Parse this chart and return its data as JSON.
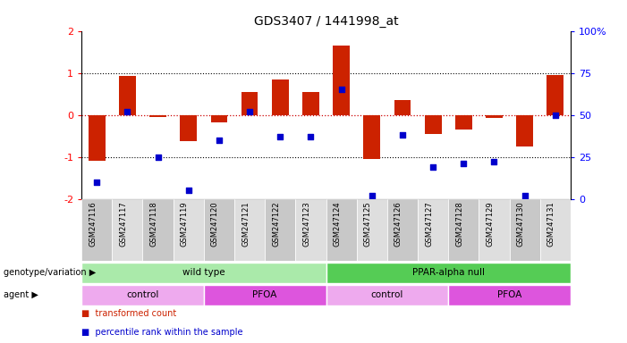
{
  "title": "GDS3407 / 1441998_at",
  "samples": [
    "GSM247116",
    "GSM247117",
    "GSM247118",
    "GSM247119",
    "GSM247120",
    "GSM247121",
    "GSM247122",
    "GSM247123",
    "GSM247124",
    "GSM247125",
    "GSM247126",
    "GSM247127",
    "GSM247128",
    "GSM247129",
    "GSM247130",
    "GSM247131"
  ],
  "bar_values": [
    -1.1,
    0.92,
    -0.05,
    -0.62,
    -0.17,
    0.55,
    0.85,
    0.55,
    1.65,
    -1.05,
    0.35,
    -0.45,
    -0.35,
    -0.08,
    -0.75,
    0.95
  ],
  "blue_percentiles": [
    10,
    52,
    25,
    5,
    35,
    52,
    37,
    37,
    65,
    2,
    38,
    19,
    21,
    22,
    2,
    50
  ],
  "ylim": [
    -2,
    2
  ],
  "right_ylim": [
    0,
    100
  ],
  "right_yticks": [
    0,
    25,
    50,
    75,
    100
  ],
  "right_yticklabels": [
    "0",
    "25",
    "50",
    "75",
    "100%"
  ],
  "left_yticks": [
    -2,
    -1,
    0,
    1,
    2
  ],
  "bar_color": "#cc2200",
  "blue_color": "#0000cc",
  "zero_line_color": "#cc0000",
  "dotted_line_color": "#000000",
  "background_color": "#ffffff",
  "genotype_groups": [
    {
      "label": "wild type",
      "start": 0,
      "end": 8,
      "color": "#aaeaaa"
    },
    {
      "label": "PPAR-alpha null",
      "start": 8,
      "end": 16,
      "color": "#55cc55"
    }
  ],
  "agent_groups": [
    {
      "label": "control",
      "start": 0,
      "end": 4,
      "color": "#eeaaee"
    },
    {
      "label": "PFOA",
      "start": 4,
      "end": 8,
      "color": "#dd55dd"
    },
    {
      "label": "control",
      "start": 8,
      "end": 12,
      "color": "#eeaaee"
    },
    {
      "label": "PFOA",
      "start": 12,
      "end": 16,
      "color": "#dd55dd"
    }
  ],
  "legend_items": [
    {
      "label": "transformed count",
      "color": "#cc2200"
    },
    {
      "label": "percentile rank within the sample",
      "color": "#0000cc"
    }
  ],
  "genotype_label": "genotype/variation",
  "agent_label": "agent"
}
